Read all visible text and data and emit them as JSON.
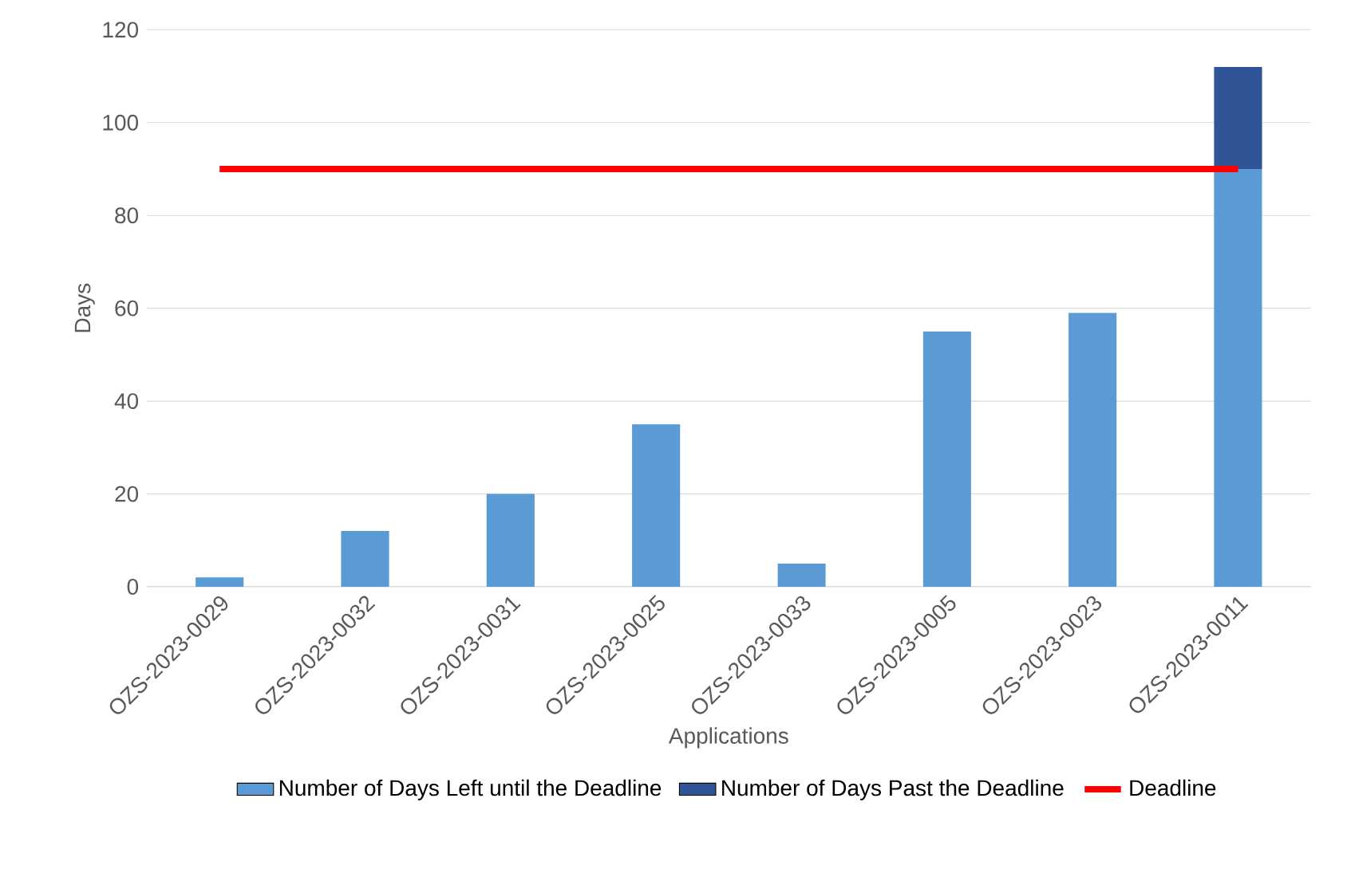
{
  "chart_data": {
    "type": "bar",
    "stacked": true,
    "xlabel": "Applications",
    "ylabel": "Days",
    "categories": [
      "OZS-2023-0029",
      "OZS-2023-0032",
      "OZS-2023-0031",
      "OZS-2023-0025",
      "OZS-2023-0033",
      "OZS-2023-0005",
      "OZS-2023-0023",
      "OZS-2023-0011"
    ],
    "series": [
      {
        "name": "Number of Days Left until the Deadline",
        "color": "#5b9bd5",
        "values": [
          2,
          12,
          20,
          35,
          5,
          55,
          59,
          90
        ]
      },
      {
        "name": "Number of Days Past the Deadline",
        "color": "#2f5597",
        "values": [
          null,
          null,
          null,
          null,
          null,
          null,
          null,
          22
        ]
      },
      {
        "name": "Deadline",
        "type": "line",
        "color": "#ff0000",
        "values": [
          90,
          90,
          90,
          90,
          90,
          90,
          90,
          90
        ]
      }
    ],
    "ylim": [
      0,
      120
    ],
    "yticks": [
      0,
      20,
      40,
      60,
      80,
      100,
      120
    ],
    "grid": "y",
    "legend": "bottom"
  }
}
